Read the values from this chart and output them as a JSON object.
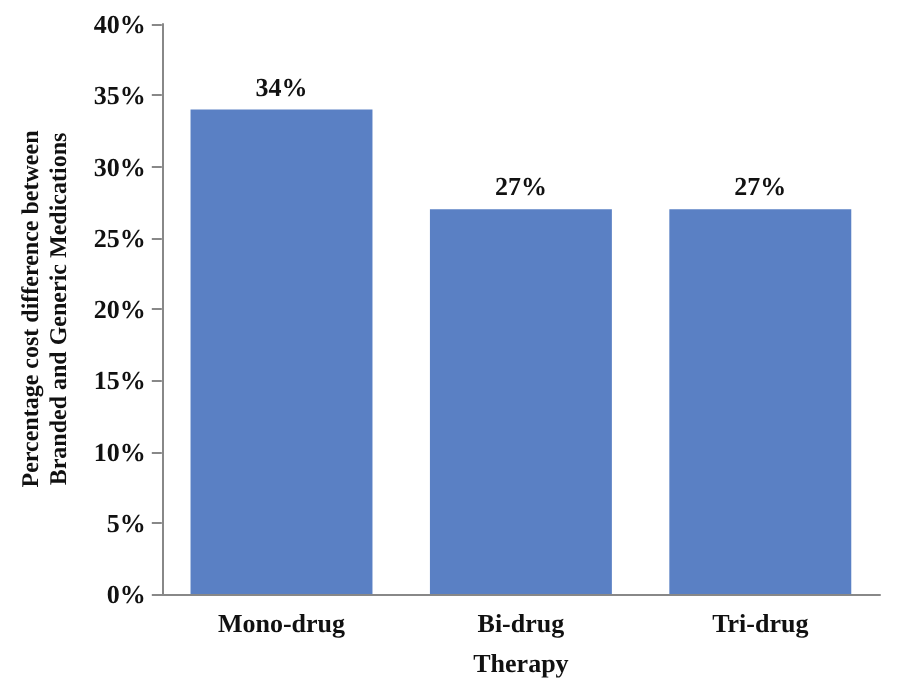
{
  "chart_data": {
    "type": "bar",
    "xlabel": "Therapy",
    "ylabel": "Percentage cost difference between\nBranded and Generic Medications",
    "categories": [
      "Mono-drug",
      "Bi-drug",
      "Tri-drug"
    ],
    "values": [
      34,
      27,
      27
    ],
    "color": "#5a80c4",
    "value_labels": [
      "34%",
      "27%",
      "27%"
    ],
    "ylim": [
      0,
      40
    ],
    "yticks": [
      {
        "value": 0,
        "label": "0%"
      },
      {
        "value": 5,
        "label": "5%"
      },
      {
        "value": 10,
        "label": "10%"
      },
      {
        "value": 15,
        "label": "15%"
      },
      {
        "value": 20,
        "label": "20%"
      },
      {
        "value": 25,
        "label": "25%"
      },
      {
        "value": 30,
        "label": "30%"
      },
      {
        "value": 35,
        "label": "35%"
      },
      {
        "value": 40,
        "label": "40%"
      }
    ],
    "grid": false
  }
}
